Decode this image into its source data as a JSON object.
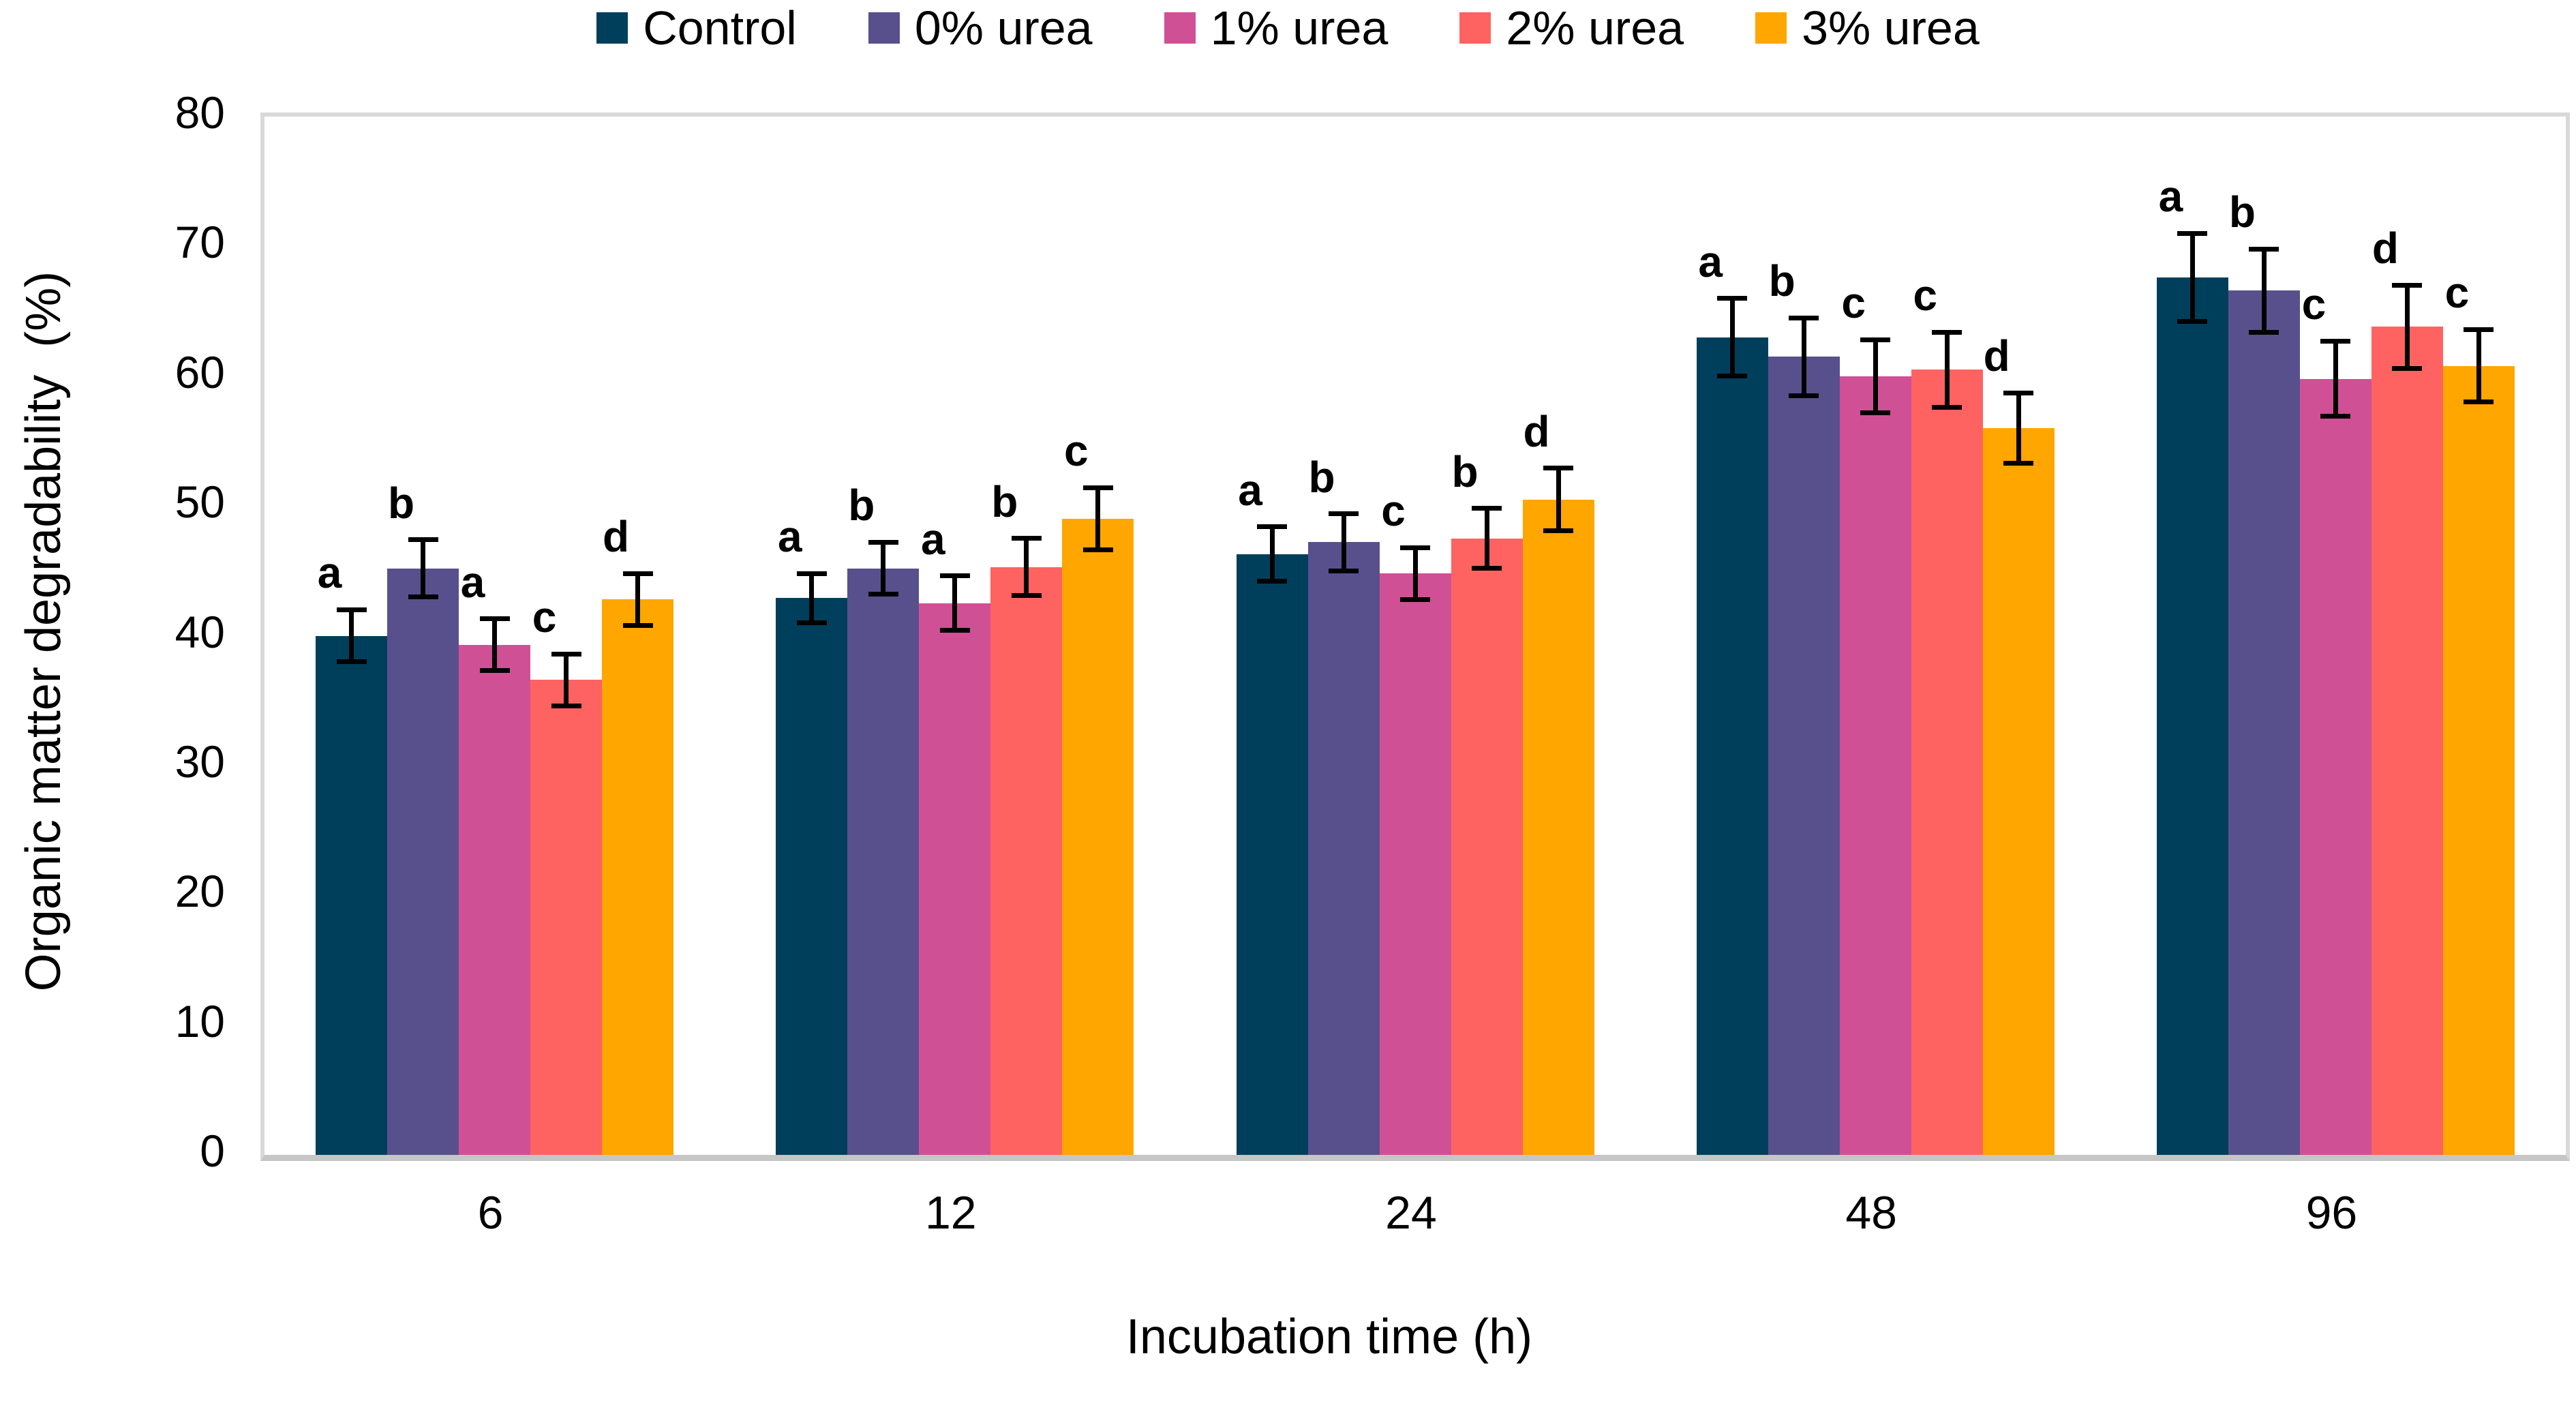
{
  "legend": {
    "items": [
      {
        "label": "Control",
        "color": "#003f5c"
      },
      {
        "label": "0% urea",
        "color": "#58508d"
      },
      {
        "label": "1% urea",
        "color": "#d05095"
      },
      {
        "label": "2% urea",
        "color": "#ff6361"
      },
      {
        "label": "3% urea",
        "color": "#ffa600"
      }
    ]
  },
  "chart_data": {
    "type": "bar",
    "title": "",
    "categories": [
      "6",
      "12",
      "24",
      "48",
      "96"
    ],
    "xlabel": "Incubation time (h)",
    "ylabel": "Organic matter degradability  (%)",
    "ylim": [
      0,
      80
    ],
    "ytick_step": 10,
    "grid": false,
    "legend_position": "top-center",
    "error_bars": true,
    "significance_letters": true,
    "series": [
      {
        "name": "Control",
        "color": "#003f5c",
        "values": [
          40.0,
          42.9,
          46.3,
          63.0,
          67.6
        ],
        "errors": [
          2.0,
          1.9,
          2.1,
          3.0,
          3.4
        ],
        "letters": [
          "a",
          "a",
          "a",
          "a",
          "a"
        ]
      },
      {
        "name": "0% urea",
        "color": "#58508d",
        "values": [
          45.2,
          45.2,
          47.2,
          61.5,
          66.6
        ],
        "errors": [
          2.2,
          2.0,
          2.2,
          3.0,
          3.2
        ],
        "letters": [
          "b",
          "b",
          "b",
          "b",
          "b"
        ]
      },
      {
        "name": "1% urea",
        "color": "#d05095",
        "values": [
          39.3,
          42.5,
          44.8,
          60.0,
          59.8
        ],
        "errors": [
          2.0,
          2.1,
          2.0,
          2.8,
          2.9
        ],
        "letters": [
          "a",
          "a",
          "c",
          "c",
          "c"
        ]
      },
      {
        "name": "2% urea",
        "color": "#ff6361",
        "values": [
          36.6,
          45.3,
          47.5,
          60.5,
          63.8
        ],
        "errors": [
          2.0,
          2.2,
          2.3,
          2.9,
          3.2
        ],
        "letters": [
          "c",
          "b",
          "b",
          "c",
          "d"
        ]
      },
      {
        "name": "3% urea",
        "color": "#ffa600",
        "values": [
          42.8,
          49.0,
          50.5,
          56.0,
          60.8
        ],
        "errors": [
          2.0,
          2.4,
          2.4,
          2.7,
          2.8
        ],
        "letters": [
          "d",
          "c",
          "d",
          "d",
          "c"
        ]
      }
    ]
  }
}
